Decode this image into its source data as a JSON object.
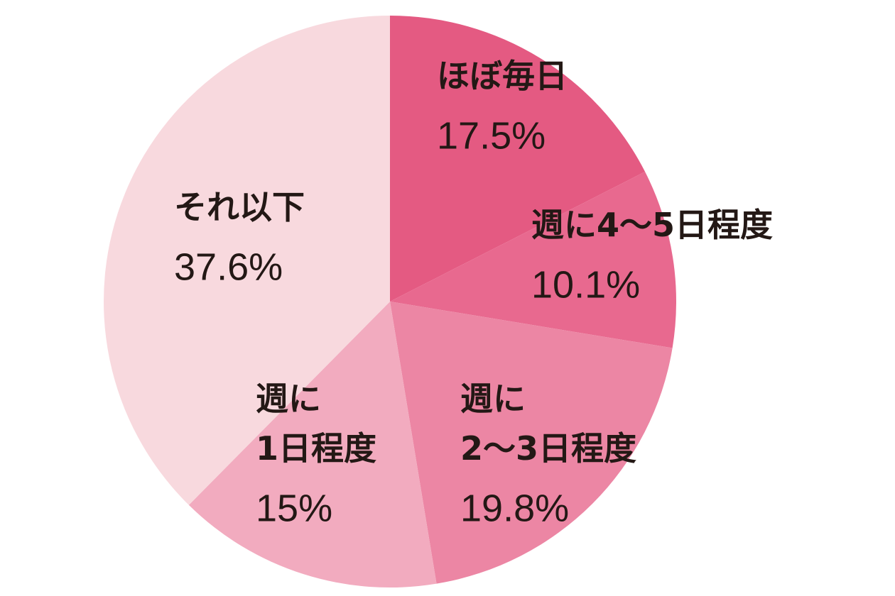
{
  "chart_data": {
    "type": "pie",
    "categories": [
      "ほぼ毎日",
      "週に4～5日程度",
      "週に\n2～3日程度",
      "週に\n1日程度",
      "それ以下"
    ],
    "values": [
      17.5,
      10.1,
      19.8,
      15,
      37.6
    ],
    "value_labels": [
      "17.5%",
      "10.1%",
      "19.8%",
      "15%",
      "37.6%"
    ],
    "colors": [
      "#e45a82",
      "#e8698f",
      "#ec86a4",
      "#f2abbf",
      "#f8d9de"
    ]
  }
}
